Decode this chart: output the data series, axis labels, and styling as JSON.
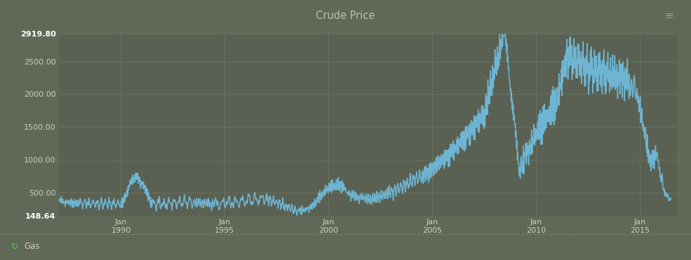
{
  "title": "Crude Price",
  "bg_color": "#606858",
  "plot_bg_color": "#5a6152",
  "line_color": "#6eb5d4",
  "grid_color": "#6b7562",
  "title_color": "#b8c0ae",
  "tick_label_color": "#c8d0be",
  "ytick_bold": [
    true,
    false,
    false,
    false,
    false,
    false,
    true
  ],
  "yticks": [
    148.64,
    500.0,
    1000.0,
    1500.0,
    2000.0,
    2500.0,
    2919.8
  ],
  "ytick_labels": [
    "2919.80",
    "2500.00",
    "2000.00",
    "1500.00",
    "1000.00",
    "500.00",
    "148.64"
  ],
  "xtick_years": [
    1990,
    1995,
    2000,
    2005,
    2010,
    2015
  ],
  "ymin": 148.64,
  "ymax": 2919.8,
  "xmin": 1987.0,
  "xmax": 2016.8,
  "legend_label": "Gas",
  "legend_icon_color": "#4db848",
  "separator_color": "#7a8470",
  "hamburger_color": "#9aA490",
  "line_width": 1.1
}
